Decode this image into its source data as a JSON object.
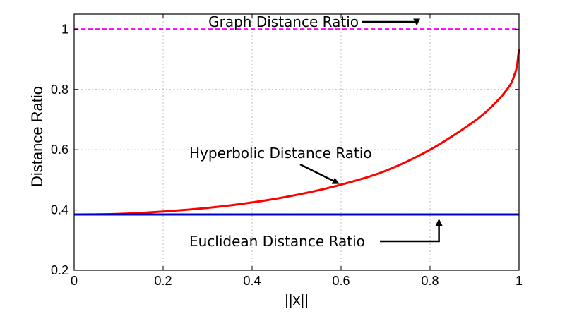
{
  "chart_data": {
    "type": "line",
    "title": "",
    "xlabel": "||x||",
    "ylabel": "Distance Ratio",
    "xlim": [
      0,
      1
    ],
    "ylim": [
      0.2,
      1.05
    ],
    "grid": true,
    "x_ticks": [
      0,
      0.2,
      0.4,
      0.6,
      0.8,
      1
    ],
    "x_tick_labels": [
      "0",
      "0.2",
      "0.4",
      "0.6",
      "0.8",
      "1"
    ],
    "y_ticks": [
      0.2,
      0.4,
      0.6,
      0.8,
      1
    ],
    "y_tick_labels": [
      "0.2",
      "0.4",
      "0.6",
      "0.8",
      "1"
    ],
    "series": [
      {
        "name": "Graph Distance Ratio",
        "color": "#ff00ff",
        "style": "dashed",
        "x": [
          0,
          1
        ],
        "y": [
          1.0,
          1.0
        ]
      },
      {
        "name": "Hyperbolic Distance Ratio",
        "color": "#ff0000",
        "style": "solid",
        "x": [
          0,
          0.1,
          0.2,
          0.3,
          0.4,
          0.5,
          0.6,
          0.7,
          0.8,
          0.9,
          0.95,
          0.98,
          0.99,
          0.995,
          1.0
        ],
        "y": [
          0.385,
          0.387,
          0.395,
          0.407,
          0.425,
          0.45,
          0.484,
          0.53,
          0.6,
          0.695,
          0.76,
          0.815,
          0.85,
          0.875,
          0.935
        ]
      },
      {
        "name": "Euclidean Distance Ratio",
        "color": "#0000cc",
        "style": "solid",
        "x": [
          0,
          1
        ],
        "y": [
          0.385,
          0.385
        ]
      }
    ],
    "annotations": [
      {
        "text": "Graph Distance Ratio",
        "points_to": {
          "x": 0.77,
          "y": 1.0
        }
      },
      {
        "text": "Hyperbolic Distance Ratio",
        "points_to": {
          "x": 0.6,
          "y": 0.484
        }
      },
      {
        "text": "Euclidean Distance Ratio",
        "points_to": {
          "x": 0.82,
          "y": 0.385
        }
      }
    ]
  }
}
